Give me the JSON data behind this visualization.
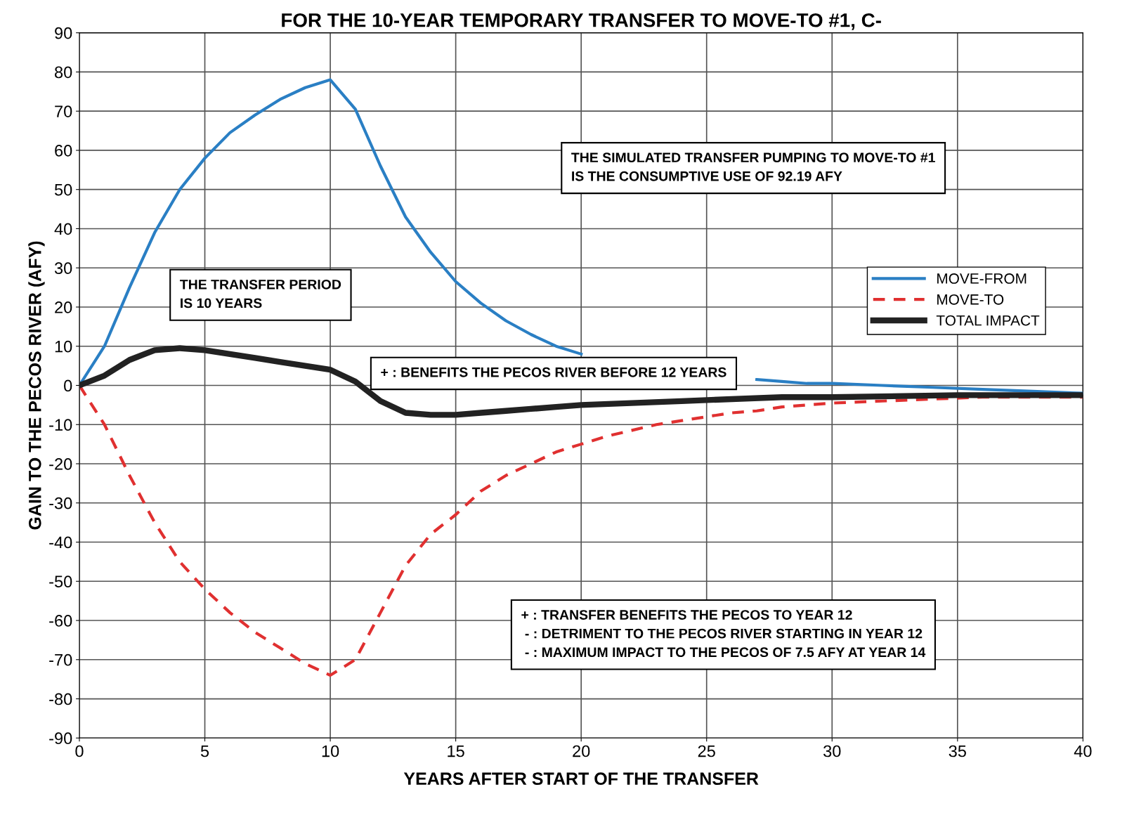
{
  "chart_data": {
    "type": "line",
    "title": "FOR THE 10-YEAR TEMPORARY TRANSFER TO MOVE-TO #1, C-",
    "xlabel": "YEARS AFTER START OF THE TRANSFER",
    "ylabel": "GAIN TO THE PECOS RIVER (AFY)",
    "xlim": [
      0,
      40
    ],
    "xticks": [
      0,
      5,
      10,
      15,
      20,
      25,
      30,
      35,
      40
    ],
    "ylim": [
      -90,
      90
    ],
    "yticks": [
      -90,
      -80,
      -70,
      -60,
      -50,
      -40,
      -30,
      -20,
      -10,
      0,
      10,
      20,
      30,
      40,
      50,
      60,
      70,
      80,
      90
    ],
    "grid": true,
    "legend": "right",
    "series": [
      {
        "name": "MOVE-FROM",
        "color": "#2a7fc4",
        "line_style": "solid",
        "x": [
          0,
          1,
          2,
          3,
          4,
          5,
          6,
          7,
          8,
          9,
          10,
          11,
          12,
          13,
          14,
          15,
          16,
          17,
          18,
          19,
          20,
          21,
          22,
          23,
          24,
          25,
          26,
          27,
          28,
          29,
          30,
          32,
          34,
          36,
          38,
          40
        ],
        "values": [
          0,
          10,
          25,
          39,
          50,
          58,
          64.5,
          69,
          73,
          76,
          78,
          70.5,
          56,
          43,
          34,
          26.5,
          21,
          16.5,
          13,
          10,
          8,
          null,
          null,
          null,
          null,
          null,
          null,
          1.5,
          1,
          0.5,
          0.5,
          0,
          -0.5,
          -1,
          -1.5,
          -2
        ]
      },
      {
        "name": "MOVE-TO",
        "color": "#e03030",
        "line_style": "dashed",
        "x": [
          0,
          1,
          2,
          3,
          4,
          5,
          6,
          7,
          8,
          9,
          10,
          11,
          12,
          13,
          14,
          15,
          16,
          17,
          18,
          19,
          20,
          21,
          22,
          23,
          24,
          25,
          26,
          27,
          28,
          29,
          30,
          32,
          34,
          36,
          38,
          40
        ],
        "values": [
          0,
          -10,
          -23,
          -35,
          -45,
          -52,
          -58,
          -63,
          -67,
          -71,
          -74,
          -70,
          -58,
          -46,
          -38,
          -33,
          -27,
          -23,
          -20,
          -17,
          -15,
          -13,
          -11.5,
          -10,
          -9,
          -8,
          -7,
          -6.5,
          -5.5,
          -5,
          -4.5,
          -4,
          -3.5,
          -3,
          -3,
          -3
        ]
      },
      {
        "name": "TOTAL IMPACT",
        "color": "#222222",
        "line_style": "solid",
        "x": [
          0,
          1,
          2,
          3,
          4,
          5,
          6,
          7,
          8,
          9,
          10,
          11,
          12,
          13,
          14,
          15,
          16,
          17,
          18,
          19,
          20,
          22,
          24,
          26,
          28,
          30,
          35,
          40
        ],
        "values": [
          0,
          2.5,
          6.5,
          9,
          9.5,
          9,
          8,
          7,
          6,
          5,
          4,
          1,
          -4,
          -7,
          -7.5,
          -7.5,
          -7,
          -6.5,
          -6,
          -5.5,
          -5,
          -4.5,
          -4,
          -3.5,
          -3,
          -3,
          -2.5,
          -2.5
        ]
      }
    ],
    "annotations": [
      "THE SIMULATED TRANSFER PUMPING TO MOVE-TO #1\nIS THE CONSUMPTIVE USE OF 92.19 AFY",
      "THE TRANSFER PERIOD\nIS 10 YEARS",
      "+ : BENEFITS THE PECOS RIVER BEFORE 12 YEARS",
      "+ : TRANSFER BENEFITS THE PECOS TO YEAR 12\n - : DETRIMENT TO THE PECOS RIVER STARTING IN YEAR 12\n - : MAXIMUM IMPACT TO THE PECOS OF 7.5 AFY AT YEAR 14"
    ]
  }
}
